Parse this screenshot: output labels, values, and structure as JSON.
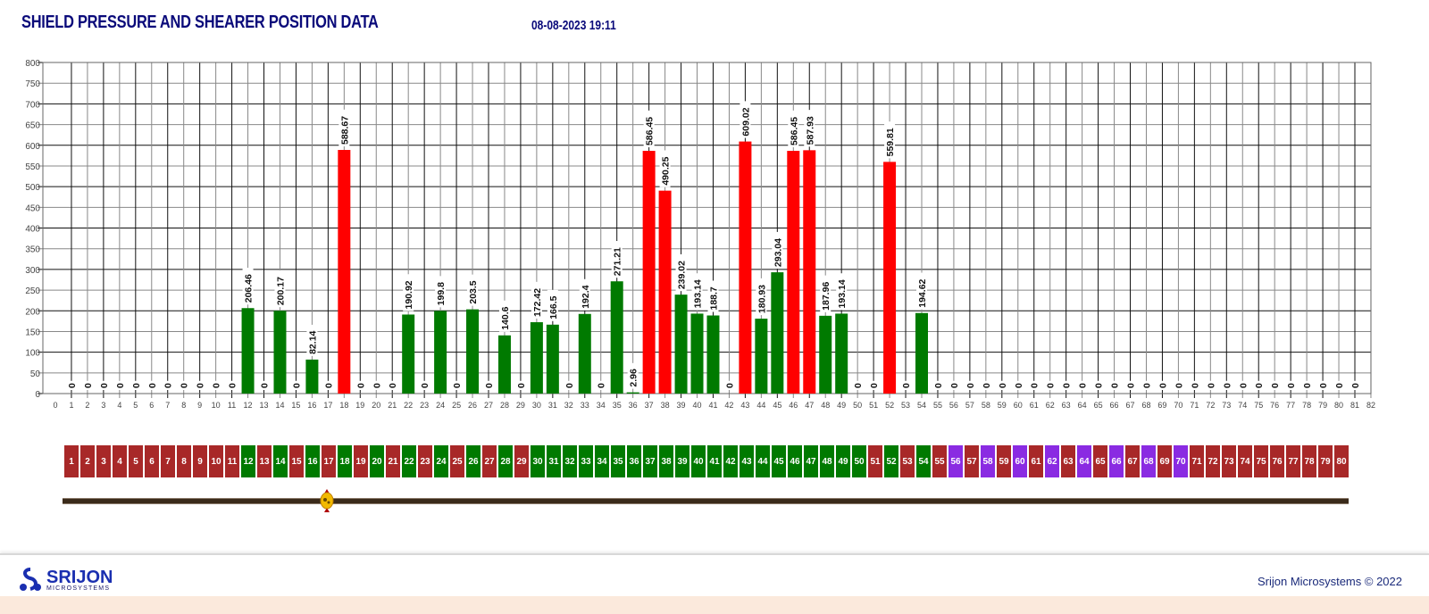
{
  "header": {
    "title": "SHIELD PRESSURE AND SHEARER POSITION DATA",
    "datetime": "08-08-2023 19:11"
  },
  "chart_data": {
    "type": "bar",
    "title": "",
    "xlabel": "",
    "ylabel": "",
    "xlim": [
      0,
      82
    ],
    "ylim": [
      0,
      800
    ],
    "ytick_step": 50,
    "grid": true,
    "x_ticks": [
      0,
      1,
      2,
      3,
      4,
      5,
      6,
      7,
      8,
      9,
      10,
      11,
      12,
      13,
      14,
      15,
      16,
      17,
      18,
      19,
      20,
      21,
      22,
      23,
      24,
      25,
      26,
      27,
      28,
      29,
      30,
      31,
      32,
      33,
      34,
      35,
      36,
      37,
      38,
      39,
      40,
      41,
      42,
      43,
      44,
      45,
      46,
      47,
      48,
      49,
      50,
      51,
      52,
      53,
      54,
      55,
      56,
      57,
      58,
      59,
      60,
      61,
      62,
      63,
      64,
      65,
      66,
      67,
      68,
      69,
      70,
      71,
      72,
      73,
      74,
      75,
      76,
      77,
      78,
      79,
      80,
      81,
      82
    ],
    "y_ticks": [
      0,
      50,
      100,
      150,
      200,
      250,
      300,
      350,
      400,
      450,
      500,
      550,
      600,
      650,
      700,
      750,
      800
    ],
    "categories": [
      1,
      2,
      3,
      4,
      5,
      6,
      7,
      8,
      9,
      10,
      11,
      12,
      13,
      14,
      15,
      16,
      17,
      18,
      19,
      20,
      21,
      22,
      23,
      24,
      25,
      26,
      27,
      28,
      29,
      30,
      31,
      32,
      33,
      34,
      35,
      36,
      37,
      38,
      39,
      40,
      41,
      42,
      43,
      44,
      45,
      46,
      47,
      48,
      49,
      50,
      51,
      52,
      53,
      54,
      55,
      56,
      57,
      58,
      59,
      60,
      61,
      62,
      63,
      64,
      65,
      66,
      67,
      68,
      69,
      70,
      71,
      72,
      73,
      74,
      75,
      76,
      77,
      78,
      79,
      80,
      81
    ],
    "values": [
      0,
      0,
      0,
      0,
      0,
      0,
      0,
      0,
      0,
      0,
      0,
      206.46,
      0,
      200.17,
      0,
      82.14,
      0,
      588.67,
      0,
      0,
      0,
      190.92,
      0,
      199.8,
      0,
      203.5,
      0,
      140.6,
      0,
      172.42,
      166.5,
      0,
      192.4,
      0,
      271.21,
      2.96,
      586.45,
      490.25,
      239.02,
      193.14,
      188.7,
      0,
      609.02,
      180.93,
      293.04,
      586.45,
      587.93,
      187.96,
      193.14,
      0,
      0,
      559.81,
      0,
      194.62,
      0,
      0,
      0,
      0,
      0,
      0,
      0,
      0,
      0,
      0,
      0,
      0,
      0,
      0,
      0,
      0,
      0,
      0,
      0,
      0,
      0,
      0,
      0,
      0,
      0,
      0,
      0
    ],
    "bar_colors": {
      "high": "#ff0000",
      "normal": "#007a00"
    },
    "high_bars": [
      18,
      37,
      38,
      43,
      46,
      47,
      52
    ]
  },
  "shields": {
    "colors": {
      "red": "#a82828",
      "green": "#007a00",
      "purple": "#8a2be2"
    },
    "items": [
      {
        "label": "1",
        "status": "red"
      },
      {
        "label": "2",
        "status": "red"
      },
      {
        "label": "3",
        "status": "red"
      },
      {
        "label": "4",
        "status": "red"
      },
      {
        "label": "5",
        "status": "red"
      },
      {
        "label": "6",
        "status": "red"
      },
      {
        "label": "7",
        "status": "red"
      },
      {
        "label": "8",
        "status": "red"
      },
      {
        "label": "9",
        "status": "red"
      },
      {
        "label": "10",
        "status": "red"
      },
      {
        "label": "11",
        "status": "red"
      },
      {
        "label": "12",
        "status": "green"
      },
      {
        "label": "13",
        "status": "red"
      },
      {
        "label": "14",
        "status": "green"
      },
      {
        "label": "15",
        "status": "red"
      },
      {
        "label": "16",
        "status": "green"
      },
      {
        "label": "17",
        "status": "red"
      },
      {
        "label": "18",
        "status": "green"
      },
      {
        "label": "19",
        "status": "red"
      },
      {
        "label": "20",
        "status": "green"
      },
      {
        "label": "21",
        "status": "red"
      },
      {
        "label": "22",
        "status": "green"
      },
      {
        "label": "23",
        "status": "red"
      },
      {
        "label": "24",
        "status": "green"
      },
      {
        "label": "25",
        "status": "red"
      },
      {
        "label": "26",
        "status": "green"
      },
      {
        "label": "27",
        "status": "red"
      },
      {
        "label": "28",
        "status": "green"
      },
      {
        "label": "29",
        "status": "red"
      },
      {
        "label": "30",
        "status": "green"
      },
      {
        "label": "31",
        "status": "green"
      },
      {
        "label": "32",
        "status": "green"
      },
      {
        "label": "33",
        "status": "green"
      },
      {
        "label": "34",
        "status": "green"
      },
      {
        "label": "35",
        "status": "green"
      },
      {
        "label": "36",
        "status": "green"
      },
      {
        "label": "37",
        "status": "green"
      },
      {
        "label": "38",
        "status": "green"
      },
      {
        "label": "39",
        "status": "green"
      },
      {
        "label": "40",
        "status": "green"
      },
      {
        "label": "41",
        "status": "green"
      },
      {
        "label": "42",
        "status": "green"
      },
      {
        "label": "43",
        "status": "green"
      },
      {
        "label": "44",
        "status": "green"
      },
      {
        "label": "45",
        "status": "green"
      },
      {
        "label": "46",
        "status": "green"
      },
      {
        "label": "47",
        "status": "green"
      },
      {
        "label": "48",
        "status": "green"
      },
      {
        "label": "49",
        "status": "green"
      },
      {
        "label": "50",
        "status": "green"
      },
      {
        "label": "51",
        "status": "red"
      },
      {
        "label": "52",
        "status": "green"
      },
      {
        "label": "53",
        "status": "red"
      },
      {
        "label": "54",
        "status": "green"
      },
      {
        "label": "55",
        "status": "red"
      },
      {
        "label": "56",
        "status": "purple"
      },
      {
        "label": "57",
        "status": "red"
      },
      {
        "label": "58",
        "status": "purple"
      },
      {
        "label": "59",
        "status": "red"
      },
      {
        "label": "60",
        "status": "purple"
      },
      {
        "label": "61",
        "status": "red"
      },
      {
        "label": "62",
        "status": "purple"
      },
      {
        "label": "63",
        "status": "red"
      },
      {
        "label": "64",
        "status": "purple"
      },
      {
        "label": "65",
        "status": "red"
      },
      {
        "label": "66",
        "status": "purple"
      },
      {
        "label": "67",
        "status": "red"
      },
      {
        "label": "68",
        "status": "purple"
      },
      {
        "label": "69",
        "status": "red"
      },
      {
        "label": "70",
        "status": "purple"
      },
      {
        "label": "71",
        "status": "red"
      },
      {
        "label": "72",
        "status": "red"
      },
      {
        "label": "73",
        "status": "red"
      },
      {
        "label": "74",
        "status": "red"
      },
      {
        "label": "75",
        "status": "red"
      },
      {
        "label": "76",
        "status": "red"
      },
      {
        "label": "77",
        "status": "red"
      },
      {
        "label": "78",
        "status": "red"
      },
      {
        "label": "79",
        "status": "red"
      },
      {
        "label": "80",
        "status": "red"
      }
    ]
  },
  "shearer": {
    "position_shield": 16,
    "icon": "shearer-icon"
  },
  "footer": {
    "logo_name": "SRIJON",
    "logo_sub": "MICROSYSTEMS",
    "copyright": "Srijon Microsystems © 2022"
  }
}
